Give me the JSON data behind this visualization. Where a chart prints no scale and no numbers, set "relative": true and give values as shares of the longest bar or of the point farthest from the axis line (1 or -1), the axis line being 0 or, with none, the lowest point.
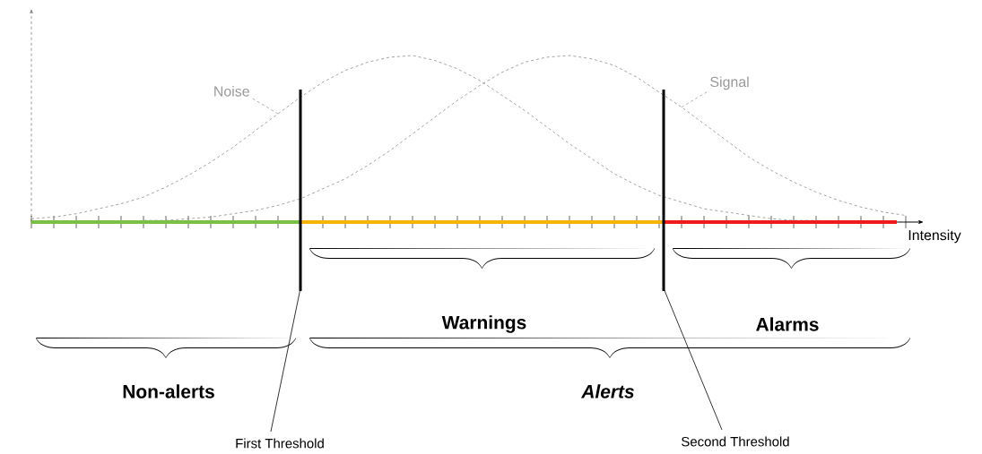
{
  "chart_data": {
    "type": "line",
    "relative": true,
    "xlabel": "Intensity",
    "line_style": "dashed",
    "categories": [
      null,
      null,
      null,
      null,
      null,
      null,
      null,
      null,
      null,
      null,
      null,
      null,
      null,
      null,
      null,
      null,
      null,
      null,
      null,
      null,
      null,
      null,
      null,
      null,
      null,
      null,
      null,
      null,
      null,
      null,
      null,
      null,
      null,
      null,
      null,
      null,
      null,
      null,
      null,
      null
    ],
    "series": [
      {
        "name": "Noise",
        "color": "#999999",
        "values": [
          0.02,
          0.03,
          0.05,
          0.08,
          0.11,
          0.15,
          0.21,
          0.28,
          0.36,
          0.45,
          0.55,
          0.65,
          0.75,
          0.84,
          0.91,
          0.96,
          0.99,
          1.0,
          0.97,
          0.92,
          0.85,
          0.76,
          0.67,
          0.57,
          0.47,
          0.38,
          0.29,
          0.22,
          0.16,
          0.12,
          0.08,
          0.06,
          0.04,
          0.02,
          0.01,
          0.01,
          0.0,
          0.0,
          0.0,
          0.0
        ]
      },
      {
        "name": "Signal",
        "color": "#999999",
        "values": [
          0.0,
          0.0,
          0.0,
          0.0,
          0.0,
          0.01,
          0.01,
          0.02,
          0.03,
          0.05,
          0.07,
          0.1,
          0.14,
          0.2,
          0.26,
          0.34,
          0.43,
          0.53,
          0.63,
          0.73,
          0.82,
          0.9,
          0.96,
          0.99,
          1.0,
          0.98,
          0.94,
          0.87,
          0.78,
          0.69,
          0.59,
          0.49,
          0.39,
          0.31,
          0.24,
          0.18,
          0.13,
          0.09,
          0.06,
          0.04
        ]
      }
    ],
    "annotations": [
      "First Threshold",
      "Second Threshold",
      "Non-alerts",
      "Warnings",
      "Alarms",
      "Alerts"
    ]
  }
}
